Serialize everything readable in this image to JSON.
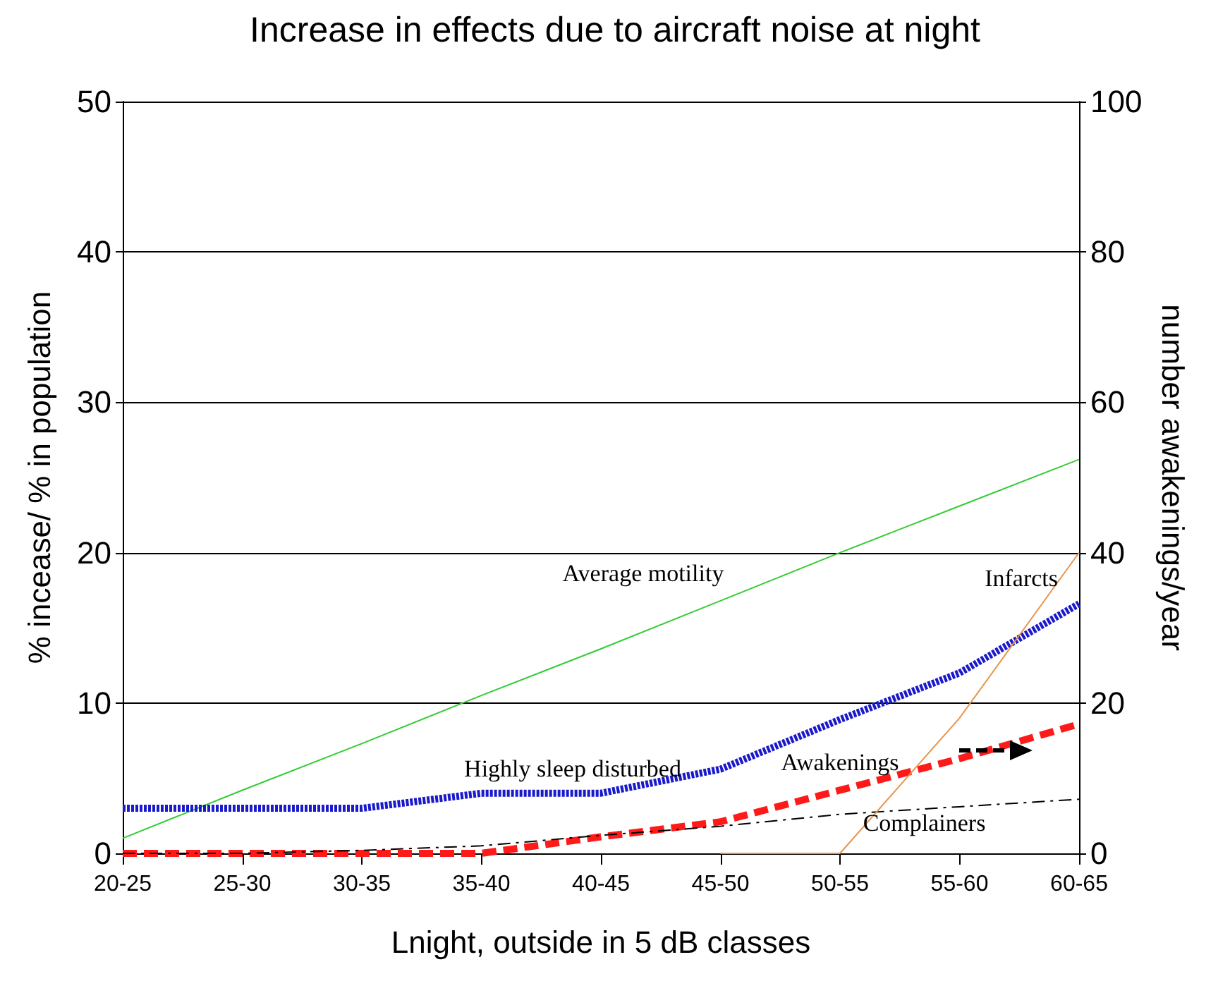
{
  "chart_data": {
    "type": "line",
    "title": "Increase in effects due to aircraft noise at night",
    "xlabel": "Lnight, outside in 5 dB classes",
    "ylabel": "% incease/ % in population",
    "y2label": "number awakenings/year",
    "categories": [
      "20-25",
      "25-30",
      "30-35",
      "35-40",
      "40-45",
      "45-50",
      "50-55",
      "55-60",
      "60-65"
    ],
    "series": [
      {
        "name": "Average motility",
        "color": "#33cc33",
        "line_style": "solid",
        "values": [
          1,
          4.2,
          7.3,
          10.5,
          13.6,
          16.8,
          20,
          23.1,
          26.2
        ]
      },
      {
        "name": "Highly sleep disturbed",
        "color": "#1a1acc",
        "line_style": "dotted",
        "values": [
          3,
          3,
          3,
          4,
          4,
          5.6,
          8.9,
          12,
          16.6
        ]
      },
      {
        "name": "Awakenings",
        "color": "#ff1a1a",
        "line_style": "dashed",
        "axis": "y2",
        "values": [
          0,
          0,
          0,
          0,
          2.2,
          4.2,
          8.4,
          12.6,
          17.2
        ]
      },
      {
        "name": "Complainers",
        "color": "#000000",
        "line_style": "dashed",
        "values": [
          0,
          0,
          0.2,
          0.5,
          1.2,
          1.8,
          2.6,
          3.1,
          3.6
        ]
      },
      {
        "name": "Infarcts",
        "color": "#e8944a",
        "line_style": "solid",
        "values": [
          null,
          null,
          null,
          null,
          null,
          0,
          0,
          9,
          20
        ]
      }
    ],
    "ylim": [
      0,
      50
    ],
    "yticks": [
      0,
      10,
      20,
      30,
      40,
      50
    ],
    "y2lim": [
      0,
      100
    ],
    "y2ticks": [
      0,
      20,
      40,
      60,
      80,
      100
    ],
    "grid": "y",
    "legend": false,
    "marker": "none"
  }
}
